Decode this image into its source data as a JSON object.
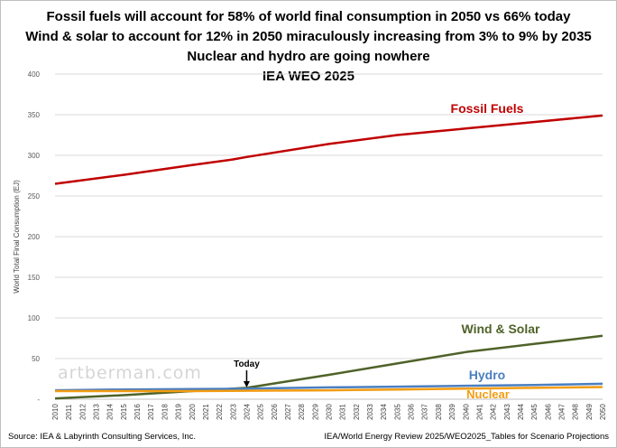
{
  "titles": [
    "Fossil fuels will account for 58% of world final consumption in 2050 vs 66% today",
    "Wind & solar to account for 12% in 2050 miraculously increasing from 3% to 9% by 2035",
    "Nuclear and hydro are going nowhere",
    "IEA WEO 2025"
  ],
  "source_left": "Source: IEA & Labyrinth Consulting Services, Inc.",
  "source_right": "IEA/World Energy Review 2025/WEO2025_Tables for Scenario Projections",
  "watermark": "artberman.com",
  "chart_data": {
    "type": "line",
    "ylabel": "World Total Final Consumption (EJ)",
    "xlabel": "",
    "ylim": [
      0,
      400
    ],
    "yticks": [
      0,
      50,
      100,
      150,
      200,
      250,
      300,
      350,
      400
    ],
    "ytick_labels": [
      "-",
      "50",
      "100",
      "150",
      "200",
      "250",
      "300",
      "350",
      "400"
    ],
    "grid": "horizontal",
    "x": [
      2010,
      2011,
      2012,
      2013,
      2014,
      2015,
      2016,
      2017,
      2018,
      2019,
      2020,
      2021,
      2022,
      2023,
      2024,
      2025,
      2026,
      2027,
      2028,
      2029,
      2030,
      2031,
      2032,
      2033,
      2034,
      2035,
      2036,
      2037,
      2038,
      2039,
      2040,
      2041,
      2042,
      2043,
      2044,
      2045,
      2046,
      2047,
      2048,
      2049,
      2050
    ],
    "series": [
      {
        "name": "Fossil Fuels",
        "color": "#c00000",
        "points": [
          [
            2010,
            265
          ],
          [
            2015,
            276
          ],
          [
            2020,
            288
          ],
          [
            2023,
            295
          ],
          [
            2024,
            298
          ],
          [
            2030,
            314
          ],
          [
            2035,
            325
          ],
          [
            2040,
            333
          ],
          [
            2045,
            341
          ],
          [
            2050,
            349
          ]
        ]
      },
      {
        "name": "Wind & Solar",
        "color": "#4f6228",
        "points": [
          [
            2010,
            1
          ],
          [
            2015,
            5
          ],
          [
            2020,
            10
          ],
          [
            2024,
            14
          ],
          [
            2030,
            30
          ],
          [
            2035,
            44
          ],
          [
            2040,
            58
          ],
          [
            2045,
            68
          ],
          [
            2050,
            78
          ]
        ]
      },
      {
        "name": "Hydro",
        "color": "#4a7fc1",
        "points": [
          [
            2010,
            11
          ],
          [
            2015,
            12
          ],
          [
            2020,
            12.5
          ],
          [
            2024,
            13
          ],
          [
            2030,
            14.5
          ],
          [
            2035,
            15.5
          ],
          [
            2040,
            16.5
          ],
          [
            2045,
            17.5
          ],
          [
            2050,
            19
          ]
        ]
      },
      {
        "name": "Nuclear",
        "color": "#f39c12",
        "points": [
          [
            2010,
            10
          ],
          [
            2015,
            10
          ],
          [
            2020,
            10
          ],
          [
            2024,
            10.5
          ],
          [
            2030,
            11
          ],
          [
            2035,
            12
          ],
          [
            2040,
            13
          ],
          [
            2045,
            14
          ],
          [
            2050,
            15
          ]
        ]
      }
    ],
    "annotation": {
      "label": "Today",
      "x": 2024
    }
  }
}
